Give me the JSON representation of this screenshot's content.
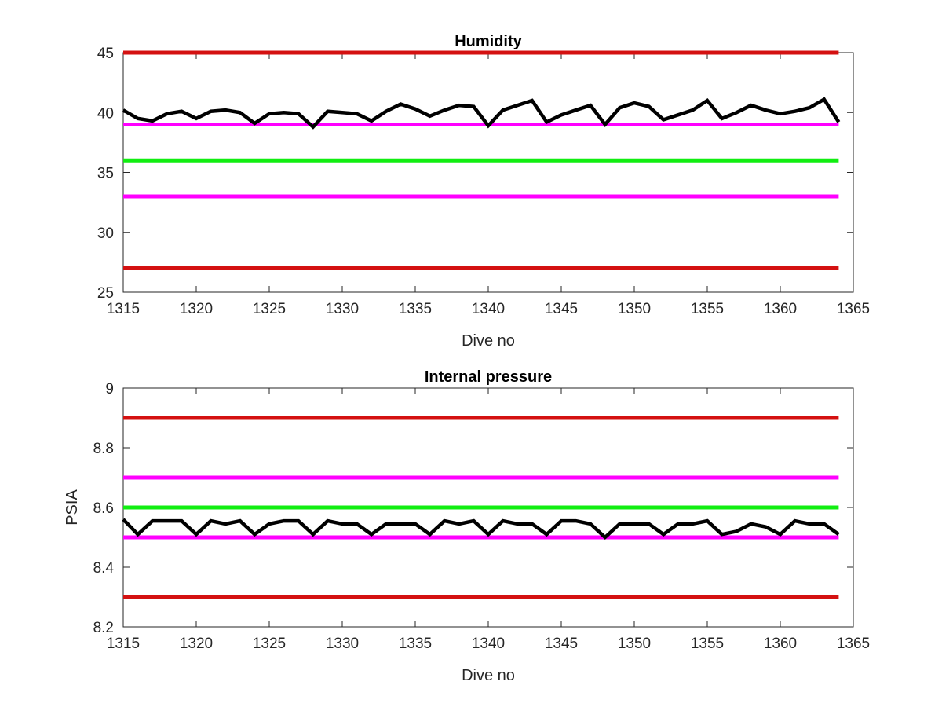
{
  "chart_data": [
    {
      "type": "line",
      "title": "Humidity",
      "xlabel": "Dive no",
      "ylabel": "",
      "xlim": [
        1315,
        1365
      ],
      "ylim": [
        25,
        45
      ],
      "xticks": [
        1315,
        1320,
        1325,
        1330,
        1335,
        1340,
        1345,
        1350,
        1355,
        1360,
        1365
      ],
      "yticks": [
        25,
        30,
        35,
        40,
        45
      ],
      "x": [
        1315,
        1316,
        1317,
        1318,
        1319,
        1320,
        1321,
        1322,
        1323,
        1324,
        1325,
        1326,
        1327,
        1328,
        1329,
        1330,
        1331,
        1332,
        1333,
        1334,
        1335,
        1336,
        1337,
        1338,
        1339,
        1340,
        1341,
        1342,
        1343,
        1344,
        1345,
        1346,
        1347,
        1348,
        1349,
        1350,
        1351,
        1352,
        1353,
        1354,
        1355,
        1356,
        1357,
        1358,
        1359,
        1360,
        1361,
        1362,
        1363,
        1364
      ],
      "series": [
        {
          "values": [
            40.2,
            39.5,
            39.3,
            39.9,
            40.1,
            39.5,
            40.1,
            40.2,
            40.0,
            39.1,
            39.9,
            40.0,
            39.9,
            38.8,
            40.1,
            40.0,
            39.9,
            39.3,
            40.1,
            40.7,
            40.3,
            39.7,
            40.2,
            40.6,
            40.5,
            38.9,
            40.2,
            40.6,
            41.0,
            39.2,
            39.8,
            40.2,
            40.6,
            39.0,
            40.4,
            40.8,
            40.5,
            39.4,
            39.8,
            40.2,
            41.0,
            39.5,
            40.0,
            40.6,
            40.2,
            39.9,
            40.1,
            40.4,
            41.1,
            39.2
          ],
          "color": "#000000"
        }
      ],
      "reference_lines": [
        {
          "value": 45,
          "color": "#d41111"
        },
        {
          "value": 39,
          "color": "#ff00ff"
        },
        {
          "value": 36,
          "color": "#11ee11"
        },
        {
          "value": 33,
          "color": "#ff00ff"
        },
        {
          "value": 27,
          "color": "#d41111"
        }
      ],
      "grid": false
    },
    {
      "type": "line",
      "title": "Internal pressure",
      "xlabel": "Dive no",
      "ylabel": "PSIA",
      "xlim": [
        1315,
        1365
      ],
      "ylim": [
        8.2,
        9.0
      ],
      "xticks": [
        1315,
        1320,
        1325,
        1330,
        1335,
        1340,
        1345,
        1350,
        1355,
        1360,
        1365
      ],
      "yticks": [
        "8.2",
        "8.4",
        "8.6",
        "8.8",
        "9"
      ],
      "ytick_values": [
        8.2,
        8.4,
        8.6,
        8.8,
        9.0
      ],
      "x": [
        1315,
        1316,
        1317,
        1318,
        1319,
        1320,
        1321,
        1322,
        1323,
        1324,
        1325,
        1326,
        1327,
        1328,
        1329,
        1330,
        1331,
        1332,
        1333,
        1334,
        1335,
        1336,
        1337,
        1338,
        1339,
        1340,
        1341,
        1342,
        1343,
        1344,
        1345,
        1346,
        1347,
        1348,
        1349,
        1350,
        1351,
        1352,
        1353,
        1354,
        1355,
        1356,
        1357,
        1358,
        1359,
        1360,
        1361,
        1362,
        1363,
        1364
      ],
      "series": [
        {
          "values": [
            8.56,
            8.51,
            8.555,
            8.555,
            8.555,
            8.51,
            8.555,
            8.545,
            8.555,
            8.51,
            8.545,
            8.555,
            8.555,
            8.51,
            8.555,
            8.545,
            8.545,
            8.51,
            8.545,
            8.545,
            8.545,
            8.51,
            8.555,
            8.545,
            8.555,
            8.51,
            8.555,
            8.545,
            8.545,
            8.51,
            8.555,
            8.555,
            8.545,
            8.5,
            8.545,
            8.545,
            8.545,
            8.51,
            8.545,
            8.545,
            8.555,
            8.51,
            8.52,
            8.545,
            8.535,
            8.51,
            8.555,
            8.545,
            8.545,
            8.51
          ],
          "color": "#000000"
        }
      ],
      "reference_lines": [
        {
          "value": 8.9,
          "color": "#d41111"
        },
        {
          "value": 8.7,
          "color": "#ff00ff"
        },
        {
          "value": 8.6,
          "color": "#11ee11"
        },
        {
          "value": 8.5,
          "color": "#ff00ff"
        },
        {
          "value": 8.3,
          "color": "#d41111"
        }
      ],
      "grid": false
    }
  ]
}
